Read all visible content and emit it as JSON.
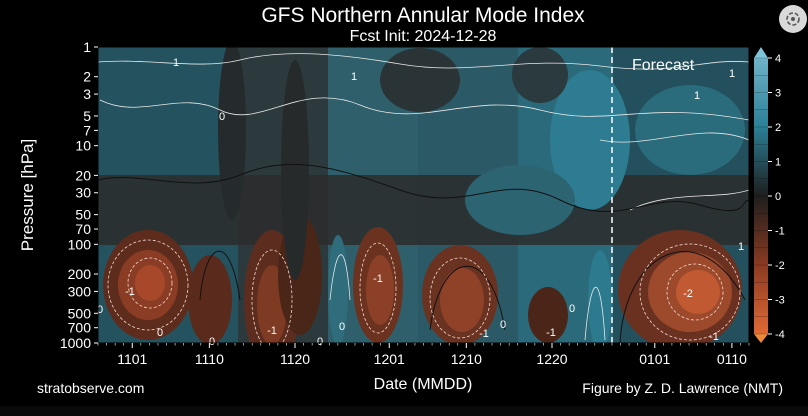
{
  "chart_data": {
    "type": "heatmap",
    "title": "GFS Northern Annular Mode Index",
    "subtitle": "Fcst Init: 2024-12-28",
    "xlabel": "Date (MMDD)",
    "ylabel": "Pressure [hPa]",
    "x_ticks": [
      "1101",
      "1110",
      "1120",
      "1201",
      "1210",
      "1220",
      "0101",
      "0110"
    ],
    "y_ticks": [
      "1",
      "2",
      "3",
      "5",
      "7",
      "10",
      "20",
      "30",
      "50",
      "70",
      "100",
      "200",
      "300",
      "500",
      "700",
      "1000"
    ],
    "y_scale": "log",
    "ylim": [
      1000,
      1
    ],
    "x_range": [
      "2024-10-28",
      "2025-01-12"
    ],
    "forecast_start": "2024-12-28",
    "annotation": "Forecast",
    "colorbar": {
      "min": -4,
      "max": 4,
      "ticks": [
        "4",
        "3",
        "2",
        "1",
        "0",
        "-1",
        "-2",
        "-3",
        "-4"
      ]
    },
    "contour_labels": [
      "1",
      "0",
      "1",
      "1",
      "-1",
      "-1",
      "0",
      "-2",
      "-1",
      "0",
      "0",
      "-1",
      "0",
      "0",
      "-1",
      "0",
      "0",
      "1",
      "-1",
      "1"
    ],
    "colors": {
      "positive": "#2b93b2",
      "neutral": "#2a2a2a",
      "negative": "#c6562d"
    }
  },
  "footer": {
    "left": "stratobserve.com",
    "right": "Figure by Z. D. Lawrence (NMT)"
  },
  "ui": {
    "lens_icon": "lens-search-icon"
  }
}
